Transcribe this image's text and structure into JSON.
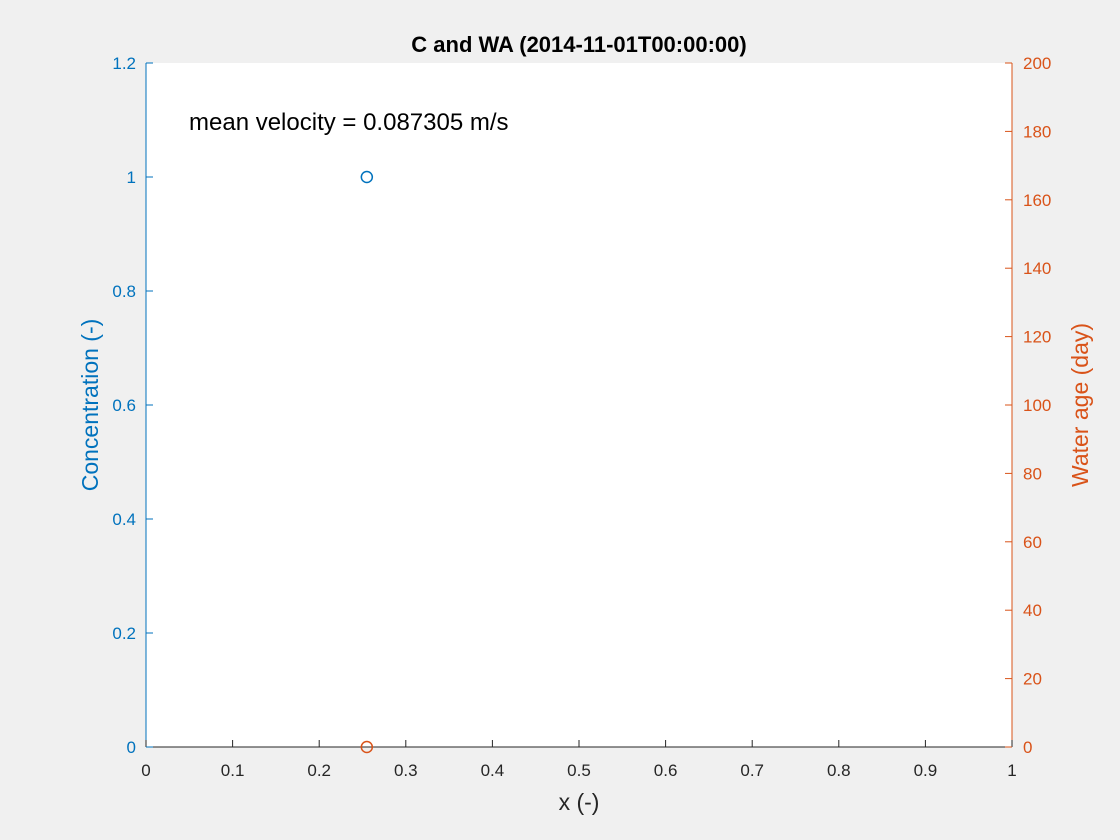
{
  "chart_data": {
    "type": "scatter",
    "title": "C and WA (2014-11-01T00:00:00)",
    "xlabel": "x (-)",
    "ylabel_left": "Concentration (-)",
    "ylabel_right": "Water age (day)",
    "annotation": "mean velocity = 0.087305 m/s",
    "xlim": [
      0,
      1
    ],
    "ylim_left": [
      0,
      1.2
    ],
    "ylim_right": [
      0,
      200
    ],
    "x_ticks": [
      "0",
      "0.1",
      "0.2",
      "0.3",
      "0.4",
      "0.5",
      "0.6",
      "0.7",
      "0.8",
      "0.9",
      "1"
    ],
    "y_left_ticks": [
      "0",
      "0.2",
      "0.4",
      "0.6",
      "0.8",
      "1",
      "1.2"
    ],
    "y_right_ticks": [
      "0",
      "20",
      "40",
      "60",
      "80",
      "100",
      "120",
      "140",
      "160",
      "180",
      "200"
    ],
    "grid": false,
    "colors": {
      "left": "#0072bd",
      "right": "#d95319"
    },
    "series": [
      {
        "axis": "left",
        "marker": "circle",
        "x": [
          0.255
        ],
        "y": [
          1.0
        ]
      },
      {
        "axis": "right",
        "marker": "circle",
        "x": [
          0.255
        ],
        "y": [
          0.0
        ]
      }
    ]
  }
}
